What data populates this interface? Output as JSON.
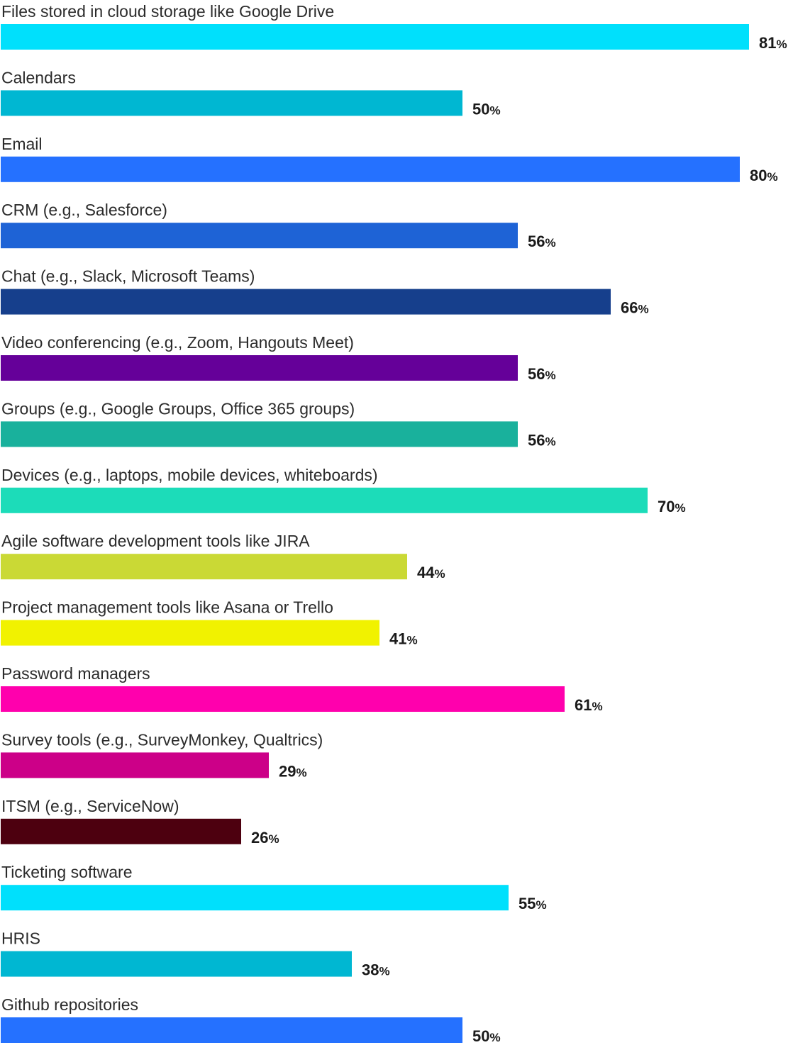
{
  "chart_data": {
    "type": "bar",
    "orientation": "horizontal",
    "value_suffix": "%",
    "categories": [
      "Files stored in cloud storage like Google Drive",
      "Calendars",
      "Email",
      "CRM (e.g., Salesforce)",
      "Chat (e.g., Slack, Microsoft Teams)",
      "Video conferencing (e.g., Zoom, Hangouts Meet)",
      "Groups (e.g., Google Groups, Office 365 groups)",
      "Devices (e.g., laptops, mobile devices, whiteboards)",
      "Agile software development tools like JIRA",
      "Project management tools like Asana or Trello",
      "Password managers",
      "Survey tools (e.g., SurveyMonkey, Qualtrics)",
      "ITSM (e.g., ServiceNow)",
      "Ticketing software",
      "HRIS",
      "Github repositories"
    ],
    "values": [
      81,
      50,
      80,
      56,
      66,
      56,
      56,
      70,
      44,
      41,
      61,
      29,
      26,
      55,
      38,
      50
    ],
    "value_labels": [
      "81",
      "50",
      "80",
      "56",
      "66",
      "56",
      "56",
      "70",
      "44",
      "41",
      "61",
      "29",
      "26",
      "55",
      "38",
      "50"
    ],
    "colors": [
      "#00e0fc",
      "#00b7d2",
      "#2571ff",
      "#1e63d6",
      "#163f8c",
      "#650099",
      "#19b19c",
      "#1cdcb9",
      "#cad935",
      "#f1f200",
      "#ff00ad",
      "#cc0088",
      "#4d000f",
      "#00e0fc",
      "#00b7d2",
      "#2571ff"
    ],
    "xlim": [
      0,
      81
    ],
    "grid": false,
    "legend": "none"
  }
}
